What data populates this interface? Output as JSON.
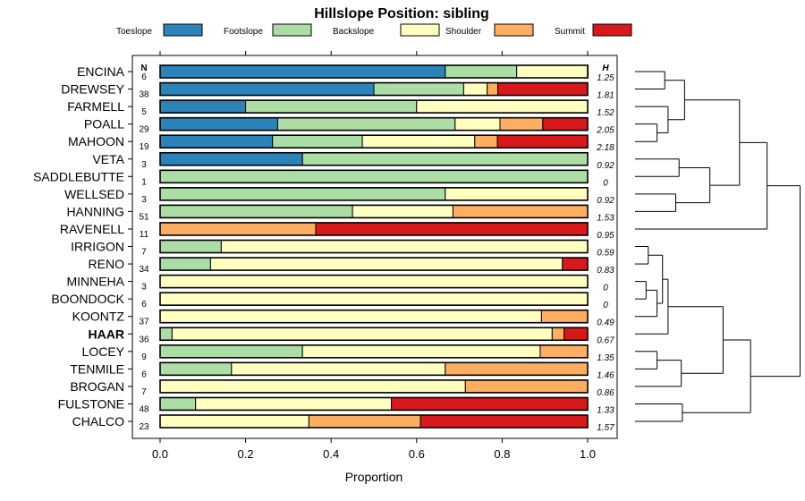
{
  "chart_data": {
    "type": "bar",
    "title": "Hillslope Position: sibling",
    "xlabel": "Proportion",
    "ylabel": "",
    "xlim": [
      0,
      1
    ],
    "xticks": [
      "0.0",
      "0.2",
      "0.4",
      "0.6",
      "0.8",
      "1.0"
    ],
    "n_header": "N",
    "h_header": "H",
    "legend_placement": "top",
    "series": [
      {
        "name": "Toeslope",
        "color": "#2B83BA"
      },
      {
        "name": "Footslope",
        "color": "#ABDDA4"
      },
      {
        "name": "Backslope",
        "color": "#FFFFBF"
      },
      {
        "name": "Shoulder",
        "color": "#FDAE61"
      },
      {
        "name": "Summit",
        "color": "#D7191C"
      }
    ],
    "rows": [
      {
        "name": "ENCINA",
        "n": "6",
        "h": "1.25",
        "bold": false,
        "values": [
          0.667,
          0.167,
          0.167,
          0,
          0
        ]
      },
      {
        "name": "DREWSEY",
        "n": "38",
        "h": "1.81",
        "bold": false,
        "values": [
          0.5,
          0.21,
          0.055,
          0.025,
          0.21
        ]
      },
      {
        "name": "FARMELL",
        "n": "5",
        "h": "1.52",
        "bold": false,
        "values": [
          0.2,
          0.4,
          0.4,
          0,
          0
        ]
      },
      {
        "name": "POALL",
        "n": "29",
        "h": "2.05",
        "bold": false,
        "values": [
          0.275,
          0.415,
          0.105,
          0.1,
          0.105
        ]
      },
      {
        "name": "MAHOON",
        "n": "19",
        "h": "2.18",
        "bold": false,
        "values": [
          0.263,
          0.21,
          0.263,
          0.053,
          0.211
        ]
      },
      {
        "name": "VETA",
        "n": "3",
        "h": "0.92",
        "bold": false,
        "values": [
          0.333,
          0.667,
          0,
          0,
          0
        ]
      },
      {
        "name": "SADDLEBUTTE",
        "n": "1",
        "h": "0",
        "bold": false,
        "values": [
          0,
          1,
          0,
          0,
          0
        ]
      },
      {
        "name": "WELLSED",
        "n": "3",
        "h": "0.92",
        "bold": false,
        "values": [
          0,
          0.667,
          0.333,
          0,
          0
        ]
      },
      {
        "name": "HANNING",
        "n": "51",
        "h": "1.53",
        "bold": false,
        "values": [
          0,
          0.45,
          0.235,
          0.315,
          0
        ]
      },
      {
        "name": "RAVENELL",
        "n": "11",
        "h": "0.95",
        "bold": false,
        "values": [
          0,
          0,
          0,
          0.364,
          0.636
        ]
      },
      {
        "name": "IRRIGON",
        "n": "7",
        "h": "0.59",
        "bold": false,
        "values": [
          0,
          0.143,
          0.857,
          0,
          0
        ]
      },
      {
        "name": "RENO",
        "n": "34",
        "h": "0.83",
        "bold": false,
        "values": [
          0,
          0.118,
          0.823,
          0,
          0.059
        ]
      },
      {
        "name": "MINNEHA",
        "n": "3",
        "h": "0",
        "bold": false,
        "values": [
          0,
          0,
          1,
          0,
          0
        ]
      },
      {
        "name": "BOONDOCK",
        "n": "6",
        "h": "0",
        "bold": false,
        "values": [
          0,
          0,
          1,
          0,
          0
        ]
      },
      {
        "name": "KOONTZ",
        "n": "37",
        "h": "0.49",
        "bold": false,
        "values": [
          0,
          0,
          0.892,
          0.108,
          0
        ]
      },
      {
        "name": "HAAR",
        "n": "36",
        "h": "0.67",
        "bold": true,
        "values": [
          0,
          0.028,
          0.889,
          0.028,
          0.055
        ]
      },
      {
        "name": "LOCEY",
        "n": "9",
        "h": "1.35",
        "bold": false,
        "values": [
          0,
          0.333,
          0.556,
          0.111,
          0
        ]
      },
      {
        "name": "TENMILE",
        "n": "6",
        "h": "1.46",
        "bold": false,
        "values": [
          0,
          0.167,
          0.5,
          0.333,
          0
        ]
      },
      {
        "name": "BROGAN",
        "n": "7",
        "h": "0.86",
        "bold": false,
        "values": [
          0,
          0,
          0.714,
          0.286,
          0
        ]
      },
      {
        "name": "FULSTONE",
        "n": "48",
        "h": "1.33",
        "bold": false,
        "values": [
          0,
          0.083,
          0.458,
          0,
          0.459
        ]
      },
      {
        "name": "CHALCO",
        "n": "23",
        "h": "1.57",
        "bold": false,
        "values": [
          0,
          0,
          0.348,
          0.261,
          0.391
        ]
      }
    ],
    "dendrogram": [
      {
        "a": 0,
        "b": 1,
        "height": 0.27
      },
      {
        "a": 3,
        "b": 4,
        "height": 0.2
      },
      {
        "a": 2,
        "b": "m1",
        "height": 0.3
      },
      {
        "a": "m0",
        "b": "m2",
        "height": 0.45
      },
      {
        "a": 5,
        "b": 6,
        "height": 0.4
      },
      {
        "a": 7,
        "b": 8,
        "height": 0.37
      },
      {
        "a": "m4",
        "b": "m5",
        "height": 0.68
      },
      {
        "a": "m3",
        "b": "m6",
        "height": 0.95
      },
      {
        "a": "m7",
        "b": 9,
        "height": 1.2
      },
      {
        "a": 10,
        "b": 11,
        "height": 0.12
      },
      {
        "a": 12,
        "b": 13,
        "height": 0.1
      },
      {
        "a": "m10",
        "b": 14,
        "height": 0.2
      },
      {
        "a": "m9",
        "b": "m11",
        "height": 0.25
      },
      {
        "a": 16,
        "b": 17,
        "height": 0.2
      },
      {
        "a": "m13",
        "b": 18,
        "height": 0.42
      },
      {
        "a": "m12",
        "b": 15,
        "height": 0.3
      },
      {
        "a": "m15",
        "b": "m14",
        "height": 0.8
      },
      {
        "a": 19,
        "b": 20,
        "height": 0.43
      },
      {
        "a": "m16",
        "b": "m17",
        "height": 1.05
      },
      {
        "a": "m8",
        "b": "m18",
        "height": 1.5
      }
    ]
  }
}
